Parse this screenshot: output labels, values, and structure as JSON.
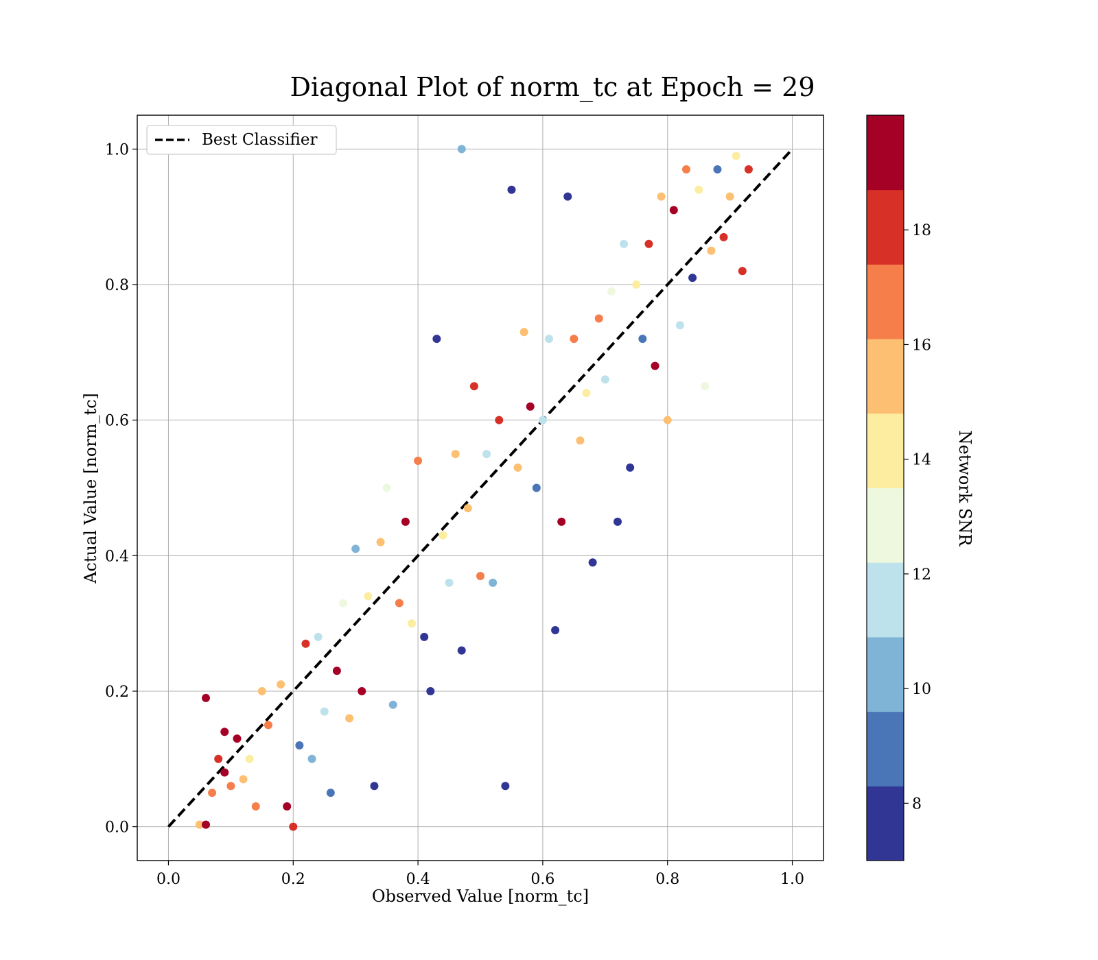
{
  "chart_data": {
    "type": "scatter",
    "title": "Diagonal Plot of norm_tc at Epoch = 29",
    "xlabel": "Observed Value [norm_tc]",
    "ylabel": "Actual Value [norm_tc]",
    "xlim": [
      -0.05,
      1.05
    ],
    "ylim": [
      -0.05,
      1.05
    ],
    "x_ticks": [
      0.0,
      0.2,
      0.4,
      0.6,
      0.8,
      1.0
    ],
    "x_tick_labels": [
      "0.0",
      "0.2",
      "0.4",
      "0.6",
      "0.8",
      "1.0"
    ],
    "y_ticks": [
      0.0,
      0.2,
      0.4,
      0.6,
      0.8,
      1.0
    ],
    "y_tick_labels": [
      "0.0",
      "0.2",
      "0.4",
      "0.6",
      "0.8",
      "1.0"
    ],
    "grid": true,
    "legend": {
      "placement": "top-left",
      "entries": [
        {
          "label": "Best Classifier",
          "style": "dashed",
          "color": "#000000"
        }
      ]
    },
    "reference_line": {
      "label": "Best Classifier",
      "from": [
        0.0,
        0.0
      ],
      "to": [
        1.0,
        1.0
      ],
      "style": "dashed"
    },
    "colorbar": {
      "label": "Network SNR",
      "range": [
        7,
        20
      ],
      "ticks": [
        8,
        10,
        12,
        14,
        16,
        18
      ],
      "tick_labels": [
        "8",
        "10",
        "12",
        "14",
        "16",
        "18"
      ],
      "levels": [
        7.0,
        8.3,
        9.6,
        10.9,
        12.2,
        13.5,
        14.8,
        16.1,
        17.4,
        18.7,
        20.0
      ],
      "colors": [
        "#313695",
        "#4a76b7",
        "#80b4d6",
        "#bde2ec",
        "#edf8df",
        "#fdeda1",
        "#fdbf71",
        "#f67e4b",
        "#d73027",
        "#a50026"
      ]
    },
    "points": [
      [
        0.05,
        0.003,
        15.5
      ],
      [
        0.06,
        0.003,
        19.5
      ],
      [
        0.06,
        0.19,
        19.5
      ],
      [
        0.07,
        0.05,
        17
      ],
      [
        0.08,
        0.1,
        18
      ],
      [
        0.09,
        0.08,
        19
      ],
      [
        0.09,
        0.14,
        19
      ],
      [
        0.1,
        0.06,
        17
      ],
      [
        0.11,
        0.13,
        19
      ],
      [
        0.12,
        0.07,
        16
      ],
      [
        0.13,
        0.1,
        14
      ],
      [
        0.14,
        0.03,
        17
      ],
      [
        0.15,
        0.2,
        15
      ],
      [
        0.16,
        0.15,
        17
      ],
      [
        0.18,
        0.21,
        16
      ],
      [
        0.19,
        0.03,
        19
      ],
      [
        0.2,
        0.0,
        18
      ],
      [
        0.21,
        0.12,
        9
      ],
      [
        0.22,
        0.27,
        18
      ],
      [
        0.23,
        0.1,
        10
      ],
      [
        0.24,
        0.28,
        12
      ],
      [
        0.25,
        0.17,
        11
      ],
      [
        0.26,
        0.05,
        9
      ],
      [
        0.27,
        0.23,
        19
      ],
      [
        0.28,
        0.33,
        13
      ],
      [
        0.29,
        0.16,
        15
      ],
      [
        0.3,
        0.41,
        10
      ],
      [
        0.31,
        0.2,
        19
      ],
      [
        0.32,
        0.34,
        14
      ],
      [
        0.33,
        0.06,
        8
      ],
      [
        0.34,
        0.42,
        16
      ],
      [
        0.35,
        0.5,
        13
      ],
      [
        0.36,
        0.18,
        10
      ],
      [
        0.37,
        0.33,
        17
      ],
      [
        0.38,
        0.45,
        19
      ],
      [
        0.39,
        0.3,
        14
      ],
      [
        0.4,
        0.54,
        17
      ],
      [
        0.41,
        0.28,
        8
      ],
      [
        0.42,
        0.2,
        8
      ],
      [
        0.43,
        0.72,
        8
      ],
      [
        0.44,
        0.43,
        14
      ],
      [
        0.45,
        0.36,
        12
      ],
      [
        0.46,
        0.55,
        15
      ],
      [
        0.47,
        0.26,
        8
      ],
      [
        0.47,
        1.0,
        10
      ],
      [
        0.48,
        0.47,
        16
      ],
      [
        0.49,
        0.65,
        18
      ],
      [
        0.5,
        0.37,
        17
      ],
      [
        0.51,
        0.55,
        12
      ],
      [
        0.52,
        0.36,
        10
      ],
      [
        0.53,
        0.6,
        18
      ],
      [
        0.54,
        0.06,
        8
      ],
      [
        0.55,
        0.94,
        8
      ],
      [
        0.56,
        0.53,
        15
      ],
      [
        0.57,
        0.73,
        16
      ],
      [
        0.58,
        0.62,
        19
      ],
      [
        0.59,
        0.5,
        9
      ],
      [
        0.6,
        0.6,
        12
      ],
      [
        0.61,
        0.72,
        11
      ],
      [
        0.62,
        0.29,
        8
      ],
      [
        0.63,
        0.45,
        19
      ],
      [
        0.64,
        0.93,
        8
      ],
      [
        0.65,
        0.72,
        17
      ],
      [
        0.66,
        0.57,
        15
      ],
      [
        0.67,
        0.64,
        14
      ],
      [
        0.68,
        0.39,
        8
      ],
      [
        0.69,
        0.75,
        17
      ],
      [
        0.7,
        0.66,
        11
      ],
      [
        0.71,
        0.79,
        13
      ],
      [
        0.72,
        0.45,
        8
      ],
      [
        0.73,
        0.86,
        11
      ],
      [
        0.74,
        0.53,
        8
      ],
      [
        0.75,
        0.8,
        14
      ],
      [
        0.76,
        0.72,
        9
      ],
      [
        0.77,
        0.86,
        18
      ],
      [
        0.78,
        0.68,
        19
      ],
      [
        0.79,
        0.93,
        16
      ],
      [
        0.8,
        0.6,
        15
      ],
      [
        0.81,
        0.91,
        19
      ],
      [
        0.82,
        0.74,
        12
      ],
      [
        0.83,
        0.97,
        17
      ],
      [
        0.84,
        0.81,
        8
      ],
      [
        0.85,
        0.94,
        14
      ],
      [
        0.86,
        0.65,
        13
      ],
      [
        0.87,
        0.85,
        16
      ],
      [
        0.88,
        0.97,
        9
      ],
      [
        0.89,
        0.87,
        18
      ],
      [
        0.9,
        0.93,
        16
      ],
      [
        0.91,
        0.99,
        14
      ],
      [
        0.92,
        0.82,
        18
      ],
      [
        0.93,
        0.97,
        18
      ]
    ]
  }
}
